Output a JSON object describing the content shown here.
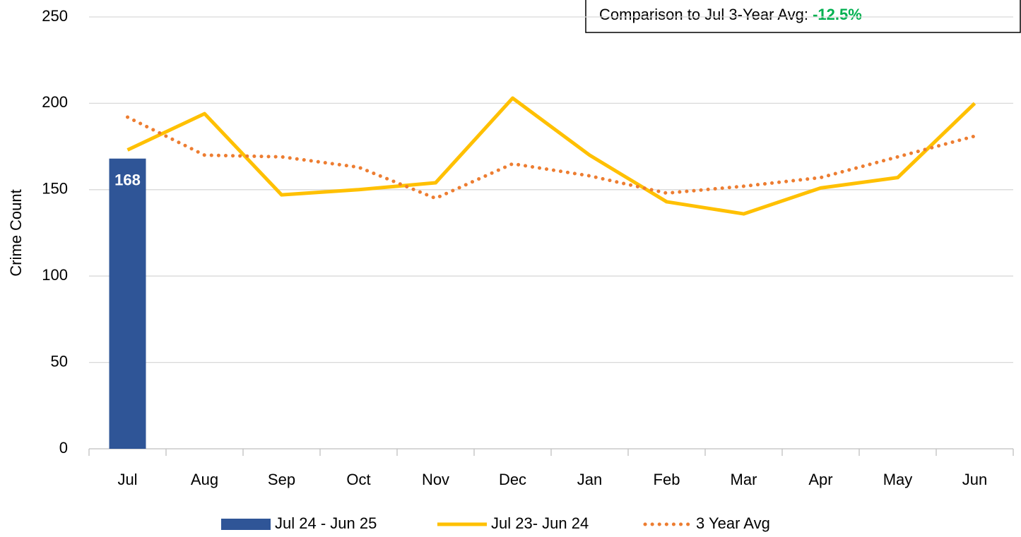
{
  "chart_data": {
    "type": "bar-line",
    "y_label": "Crime Count",
    "annotation": {
      "text": "Comparison to Jul 3-Year Avg:",
      "value": "-12.5%",
      "value_color": "#00b050"
    },
    "categories": [
      "Jul",
      "Aug",
      "Sep",
      "Oct",
      "Nov",
      "Dec",
      "Jan",
      "Feb",
      "Mar",
      "Apr",
      "May",
      "Jun"
    ],
    "ylim": [
      0,
      250
    ],
    "yticks": [
      0,
      50,
      100,
      150,
      200,
      250
    ],
    "grid": true,
    "legend": "bottom",
    "series": [
      {
        "name": "Jul 24 - Jun 25",
        "type": "bar",
        "color": "#2f5597",
        "values": [
          168,
          null,
          null,
          null,
          null,
          null,
          null,
          null,
          null,
          null,
          null,
          null
        ]
      },
      {
        "name": "Jul 23- Jun 24",
        "type": "line",
        "color": "#ffc000",
        "values": [
          173,
          194,
          147,
          150,
          154,
          203,
          170,
          143,
          136,
          151,
          157,
          200
        ]
      },
      {
        "name": "3 Year Avg",
        "type": "dotted",
        "color": "#ed7d31",
        "values": [
          192,
          170,
          169,
          163,
          145,
          165,
          158,
          148,
          152,
          157,
          169,
          181
        ]
      }
    ]
  }
}
